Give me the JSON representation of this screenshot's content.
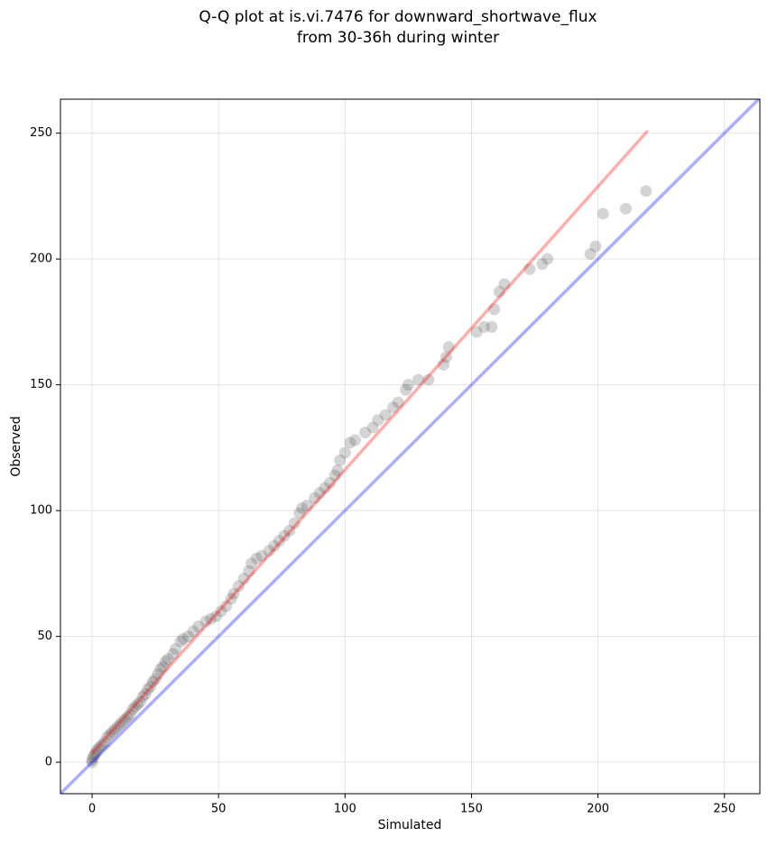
{
  "chart_data": {
    "type": "scatter",
    "title": [
      "Q-Q plot at is.vi.7476 for downward_shortwave_flux",
      "from 30-36h during winter"
    ],
    "x_label": "Simulated",
    "y_label": "Observed",
    "xlim": [
      -12.5,
      264
    ],
    "ylim": [
      -12.5,
      263.5
    ],
    "xticks": [
      0,
      50,
      100,
      150,
      200,
      250
    ],
    "yticks": [
      0,
      50,
      100,
      150,
      200,
      250
    ],
    "grid": true,
    "point_color": "#555555",
    "x": [
      0,
      0,
      0.5,
      1,
      1.5,
      2,
      3,
      4,
      5,
      6,
      7,
      8,
      9,
      10,
      11,
      12,
      13,
      14,
      15,
      16,
      17,
      18,
      19,
      20,
      21,
      22,
      23,
      24,
      25,
      26,
      27,
      28,
      29,
      30,
      32,
      33,
      35,
      36,
      38,
      40,
      42,
      45,
      47,
      49,
      51,
      53,
      55,
      56,
      58,
      60,
      62,
      63,
      65,
      67,
      70,
      72,
      74,
      76,
      78,
      80,
      82,
      83,
      85,
      88,
      90,
      92,
      94,
      96,
      97,
      98,
      100,
      102,
      104,
      108,
      111,
      113,
      116,
      119,
      121,
      124,
      125,
      129,
      133,
      139,
      140,
      141,
      152,
      155,
      158,
      159,
      161,
      163,
      173,
      178,
      180,
      197,
      199,
      202,
      211,
      219
    ],
    "y": [
      0,
      1,
      2,
      3,
      4,
      5,
      6,
      7,
      8,
      10,
      11,
      12,
      13,
      14,
      15,
      16,
      17,
      18,
      19,
      21,
      22,
      23,
      24,
      26,
      27,
      29,
      30,
      32,
      33,
      35,
      37,
      38,
      40,
      41,
      43,
      45,
      48,
      49,
      50,
      52,
      54,
      56,
      57,
      58,
      60,
      62,
      65,
      67,
      70,
      73,
      76,
      79,
      81,
      82,
      84,
      86,
      88,
      90,
      92,
      95,
      99,
      101,
      102,
      105,
      107,
      109,
      111,
      114,
      116,
      120,
      123,
      127,
      128,
      131,
      133,
      136,
      138,
      141,
      143,
      148,
      150,
      152,
      152,
      158,
      161,
      165,
      171,
      173,
      173,
      180,
      187,
      190,
      196,
      198,
      200,
      202,
      205,
      218,
      220,
      227
    ],
    "lines": [
      {
        "color": "#0000ff",
        "x": [
          -12.5,
          264
        ],
        "y": [
          -12.5,
          264
        ]
      },
      {
        "color": "#ff0000",
        "x": [
          0,
          219.7
        ],
        "y": [
          3.6,
          251
        ]
      }
    ]
  }
}
